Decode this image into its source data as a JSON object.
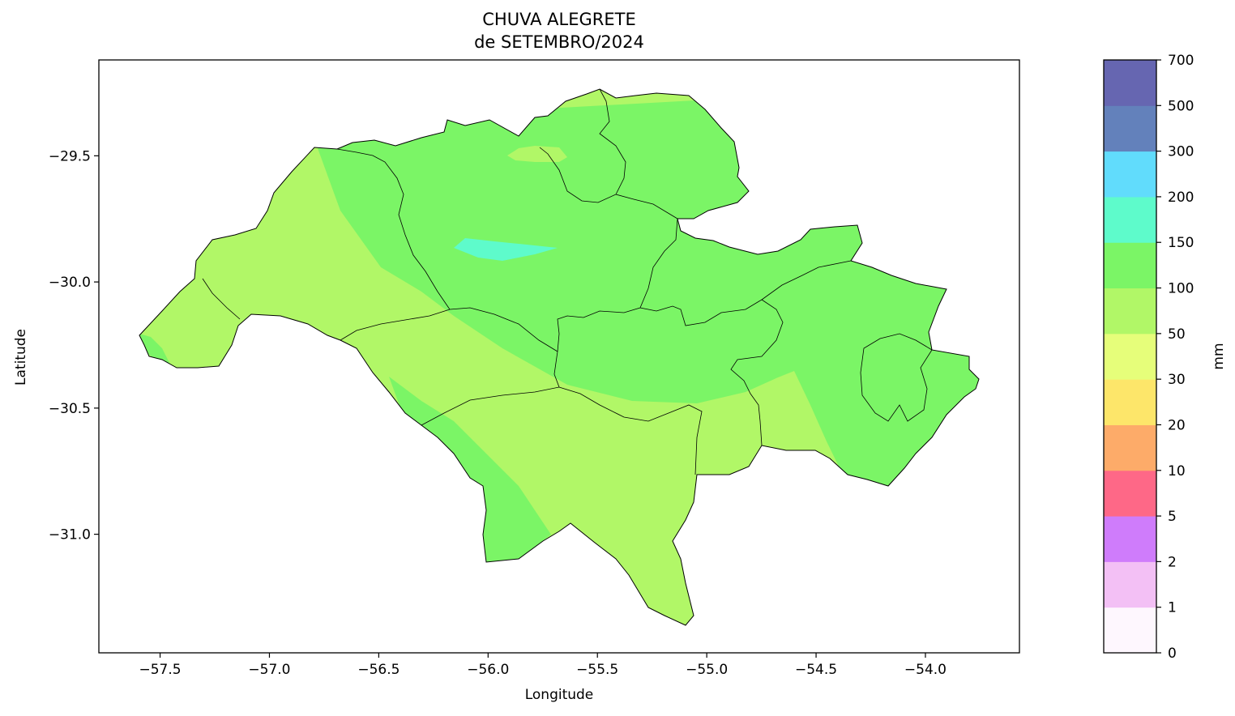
{
  "title": "CHUVA ALEGRETE",
  "subtitle": "de SETEMBRO/2024",
  "chart_data": {
    "type": "heatmap",
    "xlabel": "Longitude",
    "ylabel": "Latitude",
    "xlim": [
      -57.78,
      -53.57
    ],
    "ylim": [
      -31.47,
      -29.12
    ],
    "xticks": [
      -57.5,
      -57.0,
      -56.5,
      -56.0,
      -55.5,
      -55.0,
      -54.5,
      -54.0
    ],
    "xtick_labels": [
      "−57.5",
      "−57.0",
      "−56.5",
      "−56.0",
      "−55.5",
      "−55.0",
      "−54.5",
      "−54.0"
    ],
    "yticks": [
      -29.5,
      -30.0,
      -30.5,
      -31.0
    ],
    "ytick_labels": [
      "−29.5",
      "−30.0",
      "−30.5",
      "−31.0"
    ],
    "colorbar": {
      "label": "mm",
      "boundaries": [
        0,
        1,
        2,
        5,
        10,
        20,
        30,
        50,
        100,
        150,
        200,
        300,
        500,
        700
      ],
      "tick_labels": [
        "0",
        "1",
        "2",
        "5",
        "10",
        "20",
        "30",
        "50",
        "100",
        "150",
        "200",
        "300",
        "500",
        "700"
      ],
      "colors": [
        "#fef7fe",
        "#f3c0f5",
        "#cf7cfb",
        "#fe6887",
        "#fdab69",
        "#fde66a",
        "#e6fe7a",
        "#b1f767",
        "#7bf566",
        "#5efbcb",
        "#61dcfc",
        "#6381bb",
        "#6666b1"
      ]
    },
    "legend_placement": "right",
    "grid": false,
    "regions": [
      {
        "range": "50-100",
        "color": "#b1f767"
      },
      {
        "range": "100-150",
        "color": "#7bf566"
      },
      {
        "range": "150-200",
        "color": "#5efbcb"
      }
    ]
  }
}
